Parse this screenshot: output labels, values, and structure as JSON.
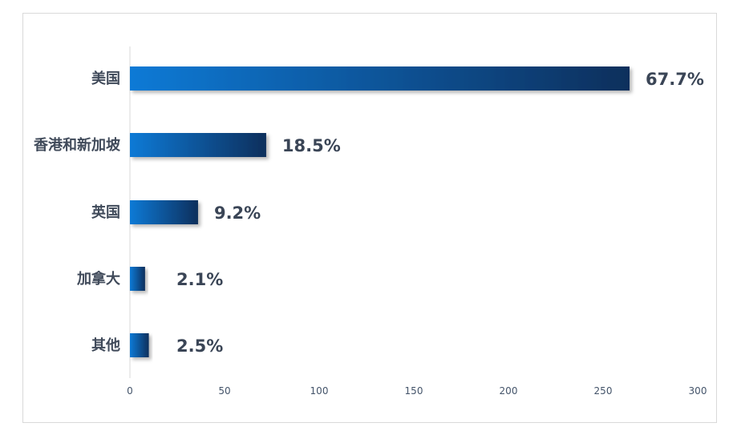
{
  "chart_data": {
    "type": "bar",
    "orientation": "horizontal",
    "categories": [
      "美国",
      "香港和新加坡",
      "英国",
      "加拿大",
      "其他"
    ],
    "values": [
      264,
      72,
      36,
      8,
      10
    ],
    "data_labels": [
      "67.7%",
      "18.5%",
      "9.2%",
      "2.1%",
      "2.5%"
    ],
    "x_ticks": [
      "0",
      "50",
      "100",
      "150",
      "200",
      "250",
      "300"
    ],
    "xlim": [
      0,
      300
    ],
    "grid": false,
    "legend": "none",
    "title": "",
    "xlabel": "",
    "ylabel": ""
  },
  "colors": {
    "bar_start": "#0a7ad6",
    "bar_end": "#0b2f5c",
    "axis": "#d9d9d9",
    "frame": "#d9d9d9"
  }
}
